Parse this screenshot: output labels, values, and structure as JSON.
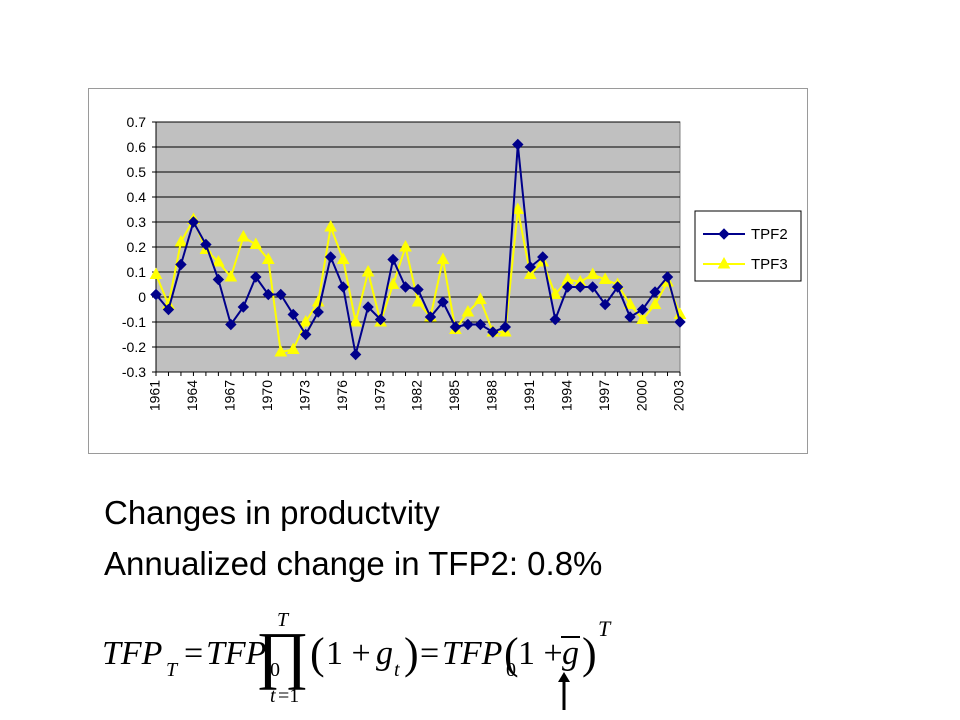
{
  "chart_data": {
    "type": "line",
    "title": "",
    "xlabel": "",
    "ylabel": "",
    "ylim": [
      -0.3,
      0.7
    ],
    "yticks": [
      "0.7",
      "0.6",
      "0.5",
      "0.4",
      "0.3",
      "0.2",
      "0.1",
      "0",
      "-0.1",
      "-0.2",
      "-0.3"
    ],
    "x": [
      1961,
      1962,
      1963,
      1964,
      1965,
      1966,
      1967,
      1968,
      1969,
      1970,
      1971,
      1972,
      1973,
      1974,
      1975,
      1976,
      1977,
      1978,
      1979,
      1980,
      1981,
      1982,
      1983,
      1984,
      1985,
      1986,
      1987,
      1988,
      1989,
      1990,
      1991,
      1992,
      1993,
      1994,
      1995,
      1996,
      1997,
      1998,
      1999,
      2000,
      2001,
      2002,
      2003
    ],
    "xtick_labels": [
      "1961",
      "1964",
      "1967",
      "1970",
      "1973",
      "1976",
      "1979",
      "1982",
      "1985",
      "1988",
      "1991",
      "1994",
      "1997",
      "2000",
      "2003"
    ],
    "grid": "horizontal",
    "plot_background": "#c0c0c0",
    "legend_position": "right",
    "series": [
      {
        "name": "TPF2",
        "color": "#00008b",
        "marker": "diamond",
        "values": [
          0.01,
          -0.05,
          0.13,
          0.3,
          0.21,
          0.07,
          -0.11,
          -0.04,
          0.08,
          0.01,
          0.01,
          -0.07,
          -0.15,
          -0.06,
          0.16,
          0.04,
          -0.23,
          -0.04,
          -0.09,
          0.15,
          0.04,
          0.03,
          -0.08,
          -0.02,
          -0.12,
          -0.11,
          -0.11,
          -0.14,
          -0.12,
          0.61,
          0.12,
          0.16,
          -0.09,
          0.04,
          0.04,
          0.04,
          -0.03,
          0.04,
          -0.08,
          -0.05,
          0.02,
          0.08,
          -0.1
        ]
      },
      {
        "name": "TPF3",
        "color": "#ffff00",
        "marker": "triangle",
        "values": [
          0.09,
          -0.03,
          0.22,
          0.31,
          0.19,
          0.14,
          0.08,
          0.24,
          0.21,
          0.15,
          -0.22,
          -0.21,
          -0.1,
          -0.02,
          0.28,
          0.15,
          -0.1,
          0.1,
          -0.1,
          0.05,
          0.2,
          -0.02,
          -0.08,
          0.15,
          -0.13,
          -0.06,
          -0.01,
          -0.14,
          -0.14,
          0.35,
          0.09,
          0.14,
          0.01,
          0.07,
          0.06,
          0.09,
          0.07,
          0.05,
          -0.03,
          -0.09,
          -0.03,
          0.06,
          -0.07
        ]
      }
    ]
  },
  "captions": {
    "line1": "Changes in productvity",
    "line2": "Annualized change in TFP2: 0.8%"
  },
  "formula": {
    "lhs": "TFP",
    "lhs_sub": "T",
    "eq": "=",
    "tfp0": "TFP",
    "zero": "0",
    "product": "∏",
    "prod_upper": "T",
    "prod_lower_var": "t",
    "prod_lower_eq": "=1",
    "open_paren": "(",
    "one_plus": "1 +",
    "g": "g",
    "g_sub": "t",
    "close_paren": ")",
    "eq2": "=",
    "tfp0_b": "TFP",
    "zero_b": "0",
    "open_paren_b": "(",
    "one_plus_b": "1 +",
    "g_bar": "g",
    "close_paren_b": ")",
    "exponent": "T"
  }
}
